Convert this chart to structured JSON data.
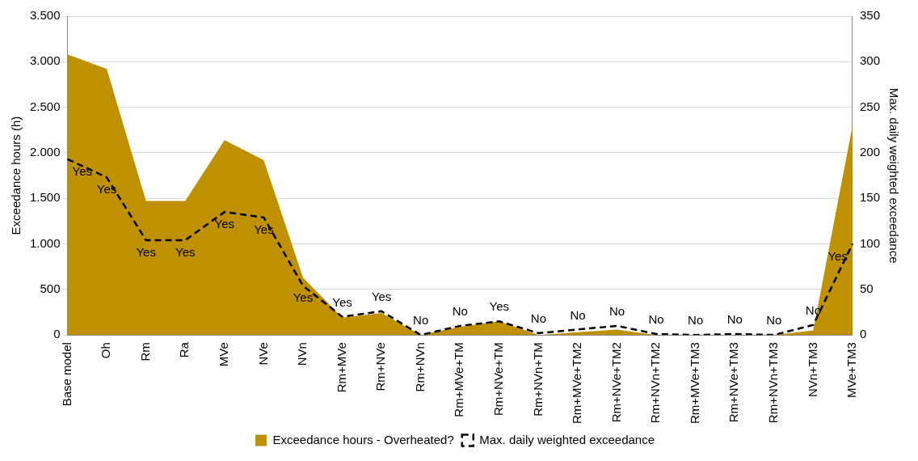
{
  "chart_data": {
    "type": "area",
    "categories": [
      "Base model",
      "Oh",
      "Rm",
      "Ra",
      "MVe",
      "NVe",
      "NVn",
      "Rm+MVe",
      "Rm+NVe",
      "Rm+NVn",
      "Rm+MVe+TM",
      "Rm+NVe+TM",
      "Rm+NVn+TM",
      "Rm+MVe+TM2",
      "Rm+NVe+TM2",
      "Rm+NVn+TM2",
      "Rm+MVe+TM3",
      "Rm+NVe+TM3",
      "Rm+NVn+TM3",
      "NVn+TM3",
      "MVe+TM3"
    ],
    "series": [
      {
        "name": "Exceedance hours - Overheated?",
        "color": "#bf9000",
        "values": [
          3080,
          2920,
          1470,
          1470,
          2140,
          1920,
          630,
          190,
          240,
          0,
          90,
          150,
          0,
          30,
          60,
          0,
          0,
          0,
          0,
          50,
          2300
        ]
      },
      {
        "name": "Max. daily weighted exceedance",
        "type": "line",
        "axis": "y2",
        "color": "#000000",
        "line_style": "dashed",
        "values": [
          193,
          173,
          104,
          104,
          135,
          129,
          54,
          20,
          26,
          0,
          10,
          15,
          2,
          6,
          10,
          1,
          0,
          1,
          0,
          11,
          100
        ],
        "value_labels": [
          "Yes",
          "Yes",
          "Yes",
          "Yes",
          "Yes",
          "Yes",
          "Yes",
          "Yes",
          "Yes",
          "No",
          "No",
          "Yes",
          "No",
          "No",
          "No",
          "No",
          "No",
          "No",
          "No",
          "No",
          "Yes"
        ]
      }
    ],
    "ylabel": "Exceedance hours (h)",
    "y2label": "Max. daily weighted exceedance",
    "ylim": [
      0,
      3500
    ],
    "yticks": [
      0,
      {
        "value": 500,
        "label": "500"
      },
      {
        "value": 1000,
        "label": "1.000"
      },
      {
        "value": 1500,
        "label": "1.500"
      },
      {
        "value": 2000,
        "label": "2.000"
      },
      {
        "value": 2500,
        "label": "2.500"
      },
      {
        "value": 3000,
        "label": "3.000"
      },
      {
        "value": 3500,
        "label": "3.500"
      }
    ],
    "y2lim": [
      0,
      350
    ],
    "y2ticks": [
      0,
      50,
      100,
      150,
      200,
      250,
      300,
      350
    ],
    "grid": "y",
    "legend": "bottom"
  }
}
